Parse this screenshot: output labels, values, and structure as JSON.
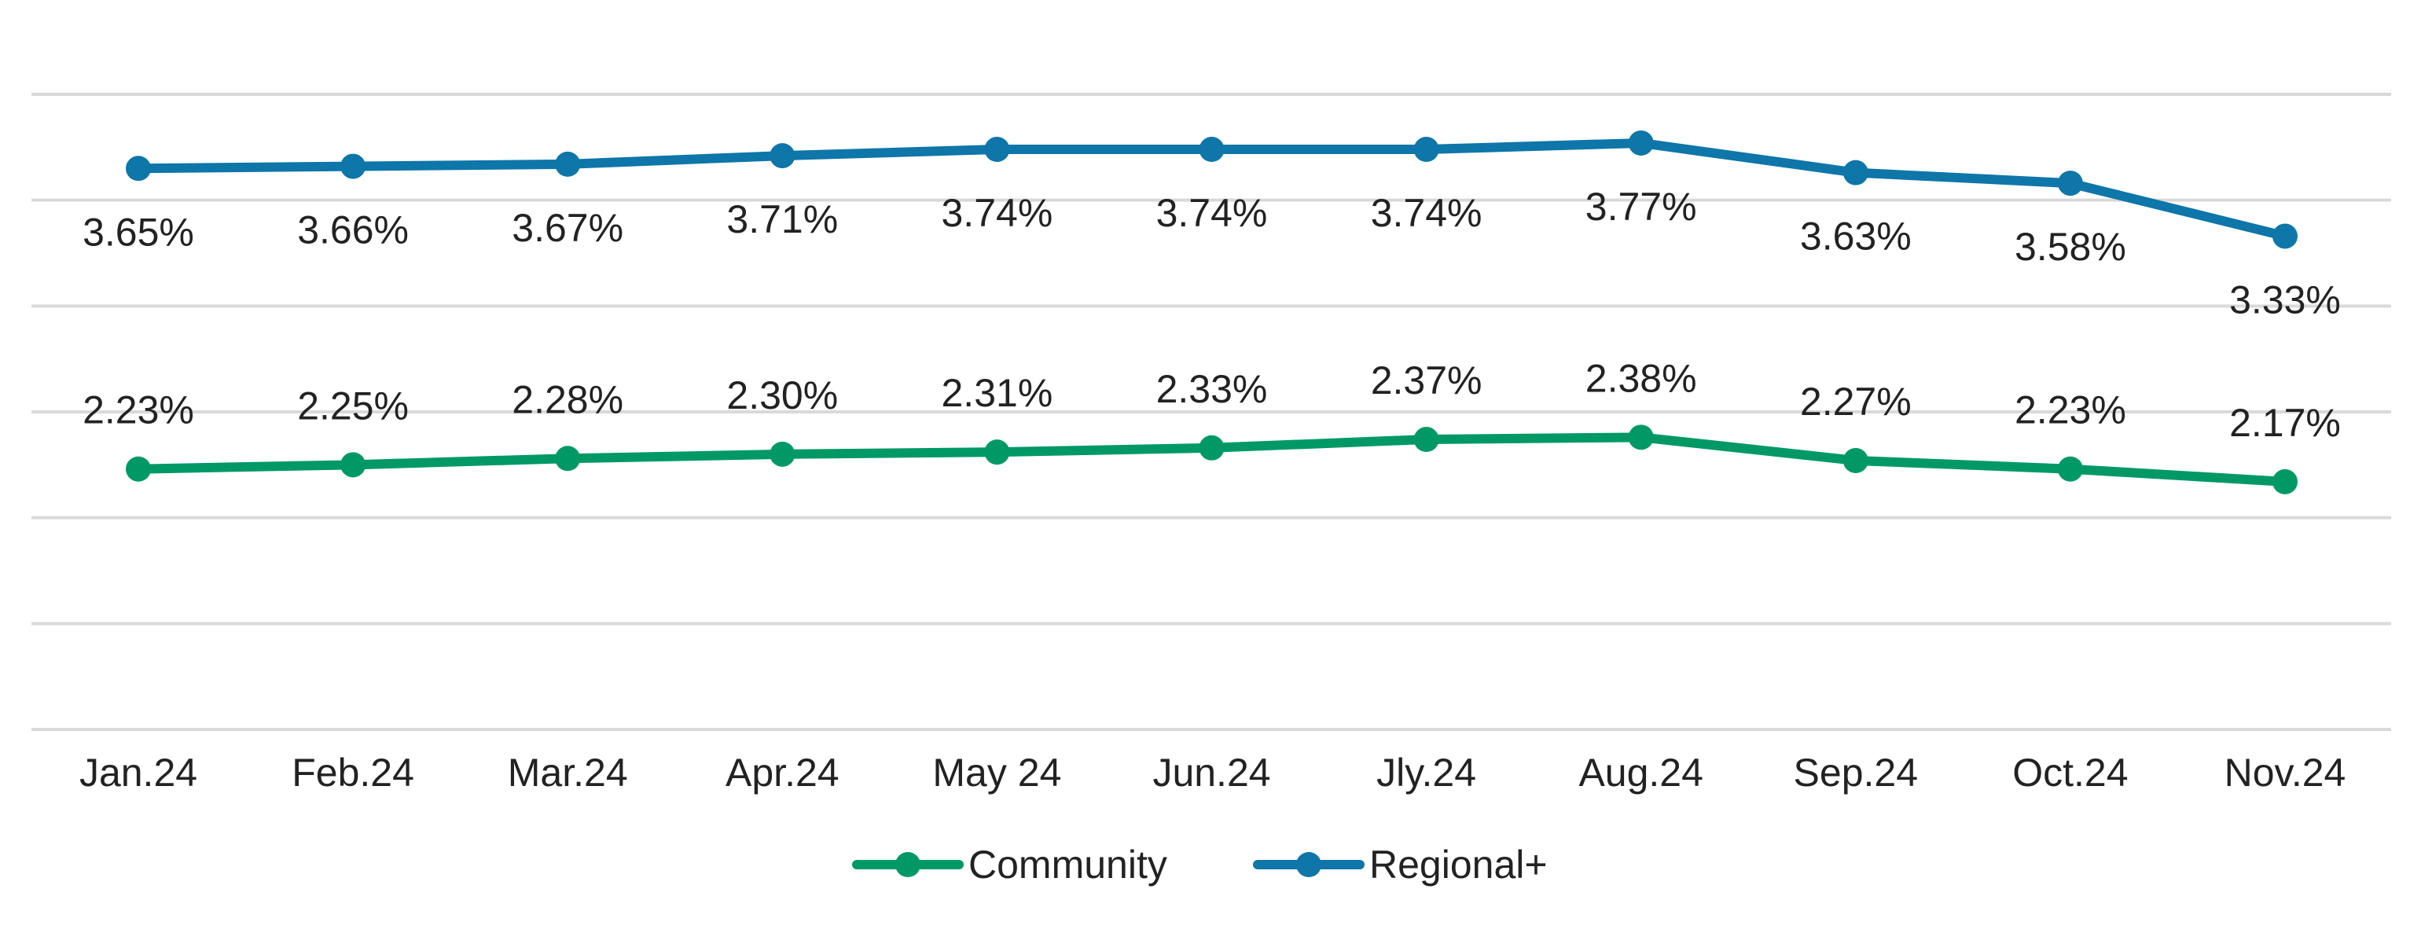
{
  "chart_data": {
    "type": "line",
    "categories": [
      "Jan.24",
      "Feb.24",
      "Mar.24",
      "Apr.24",
      "May 24",
      "Jun.24",
      "Jly.24",
      "Aug.24",
      "Sep.24",
      "Oct.24",
      "Nov.24"
    ],
    "series": [
      {
        "name": "Community",
        "color": "#009966",
        "values": [
          2.23,
          2.25,
          2.28,
          2.3,
          2.31,
          2.33,
          2.37,
          2.38,
          2.27,
          2.23,
          2.17
        ],
        "labels": [
          "2.23%",
          "2.25%",
          "2.28%",
          "2.30%",
          "2.31%",
          "2.33%",
          "2.37%",
          "2.38%",
          "2.27%",
          "2.23%",
          "2.17%"
        ],
        "label_position": "above"
      },
      {
        "name": "Regional+",
        "color": "#0E76A8",
        "values": [
          3.65,
          3.66,
          3.67,
          3.71,
          3.74,
          3.74,
          3.74,
          3.77,
          3.63,
          3.58,
          3.33
        ],
        "labels": [
          "3.65%",
          "3.66%",
          "3.67%",
          "3.71%",
          "3.74%",
          "3.74%",
          "3.74%",
          "3.77%",
          "3.63%",
          "3.58%",
          "3.33%"
        ],
        "label_position": "below"
      }
    ],
    "ylim": [
      1.0,
      4.0
    ],
    "y_tick_labels_shown": false,
    "grid": true,
    "gridline_color": "#d9d9d9",
    "legend_position": "bottom-center",
    "title": "",
    "xlabel": "",
    "ylabel": ""
  }
}
